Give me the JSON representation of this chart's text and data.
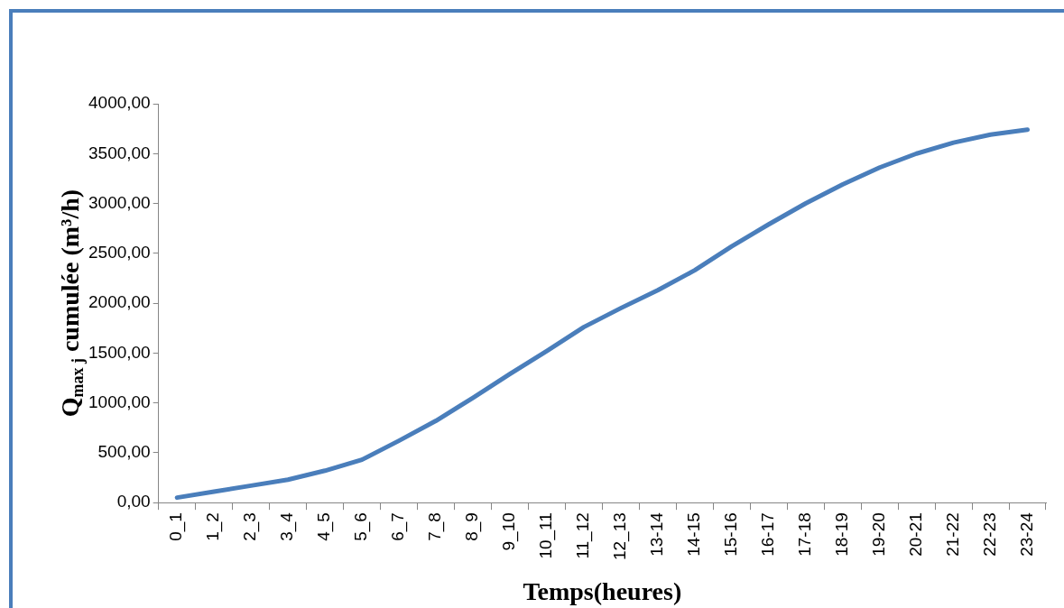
{
  "chart_data": {
    "type": "line",
    "xlabel": "Temps(heures)",
    "ylabel": "Q$_{max j}$ cumulée (m³/h)",
    "categories": [
      "0_1",
      "1_2",
      "2_3",
      "3_4",
      "4_5",
      "5_6",
      "6_7",
      "7_8",
      "8_9",
      "9_10",
      "10_11",
      "11_12",
      "12_13",
      "13-14",
      "14-15",
      "15-16",
      "16-17",
      "17-18",
      "18-19",
      "19-20",
      "20-21",
      "21-22",
      "22-23",
      "23-24"
    ],
    "series": [
      {
        "color": "#4a7ebb",
        "values": [
          50,
          110,
          170,
          230,
          320,
          430,
          620,
          820,
          1050,
          1290,
          1520,
          1760,
          1950,
          2130,
          2330,
          2570,
          2790,
          3000,
          3190,
          3360,
          3500,
          3610,
          3690,
          3740
        ]
      }
    ],
    "ylim": [
      0,
      4000
    ],
    "yticks": [
      {
        "value": 0,
        "label": "0,00"
      },
      {
        "value": 500,
        "label": "500,00"
      },
      {
        "value": 1000,
        "label": "1000,00"
      },
      {
        "value": 1500,
        "label": "1500,00"
      },
      {
        "value": 2000,
        "label": "2000,00"
      },
      {
        "value": 2500,
        "label": "2500,00"
      },
      {
        "value": 3000,
        "label": "3000,00"
      },
      {
        "value": 3500,
        "label": "3500,00"
      },
      {
        "value": 4000,
        "label": "4000,00"
      }
    ],
    "grid": false,
    "legend": false,
    "marker": "none",
    "line_style": "solid"
  }
}
